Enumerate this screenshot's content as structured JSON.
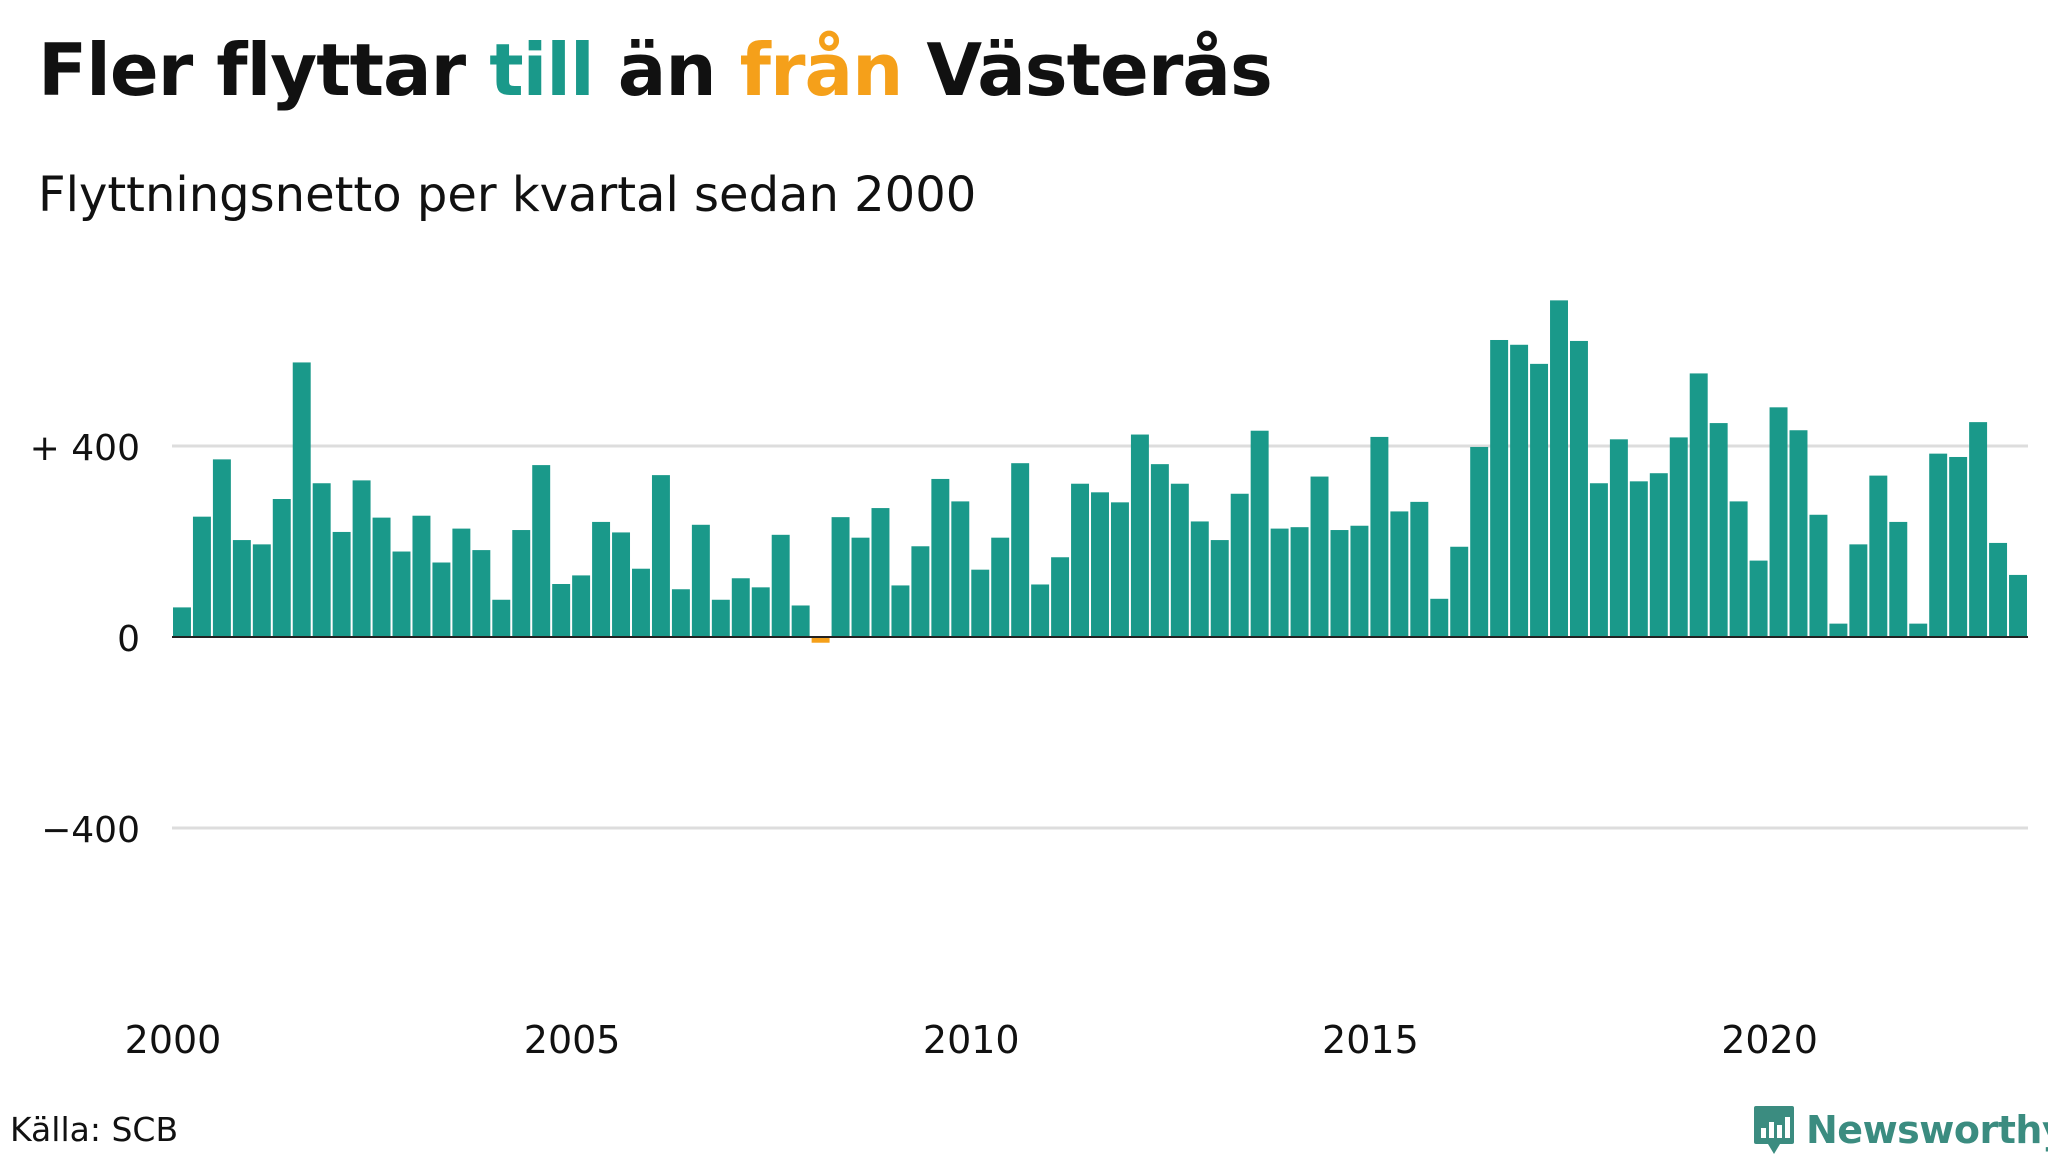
{
  "header": {
    "title_before": "Fler flyttar ",
    "title_till": "till",
    "title_middle": " än ",
    "title_fran": "från",
    "title_after": " Västerås",
    "subtitle": "Flyttningsnetto per kvartal sedan 2000"
  },
  "footer": {
    "source": "Källa: SCB",
    "brand": "Newsworthy"
  },
  "colors": {
    "positive": "#1a998a",
    "negative": "#f5a01a",
    "grid": "#dddddd",
    "axis": "#222222",
    "brand": "#3b8c80"
  },
  "chart_data": {
    "type": "bar",
    "title": "Fler flyttar till än från Västerås",
    "subtitle": "Flyttningsnetto per kvartal sedan 2000",
    "x_start": 2000.0,
    "x_step": 0.25,
    "xlim": [
      2000,
      2023.25
    ],
    "ylim": [
      -800,
      800
    ],
    "grid": true,
    "yticks": [
      {
        "value": 400,
        "label": "+ 400"
      },
      {
        "value": 0,
        "label": "0"
      },
      {
        "value": -400,
        "label": "−400"
      }
    ],
    "xticks": [
      {
        "value": 2000,
        "label": "2000"
      },
      {
        "value": 2005,
        "label": "2005"
      },
      {
        "value": 2010,
        "label": "2010"
      },
      {
        "value": 2015,
        "label": "2015"
      },
      {
        "value": 2020,
        "label": "2020"
      }
    ],
    "values": [
      62,
      252,
      372,
      203,
      194,
      289,
      575,
      322,
      220,
      328,
      250,
      179,
      254,
      156,
      227,
      182,
      78,
      224,
      360,
      111,
      129,
      241,
      219,
      143,
      339,
      100,
      235,
      78,
      123,
      104,
      214,
      66,
      -12,
      251,
      208,
      270,
      108,
      190,
      331,
      284,
      141,
      208,
      364,
      110,
      167,
      321,
      303,
      282,
      424,
      362,
      321,
      242,
      203,
      300,
      432,
      227,
      230,
      336,
      224,
      233,
      419,
      263,
      283,
      80,
      189,
      398,
      622,
      612,
      572,
      705,
      620,
      322,
      414,
      326,
      343,
      418,
      552,
      448,
      284,
      160,
      481,
      433,
      256,
      28,
      194,
      338,
      241,
      28,
      384,
      377,
      450,
      197,
      130
    ]
  }
}
